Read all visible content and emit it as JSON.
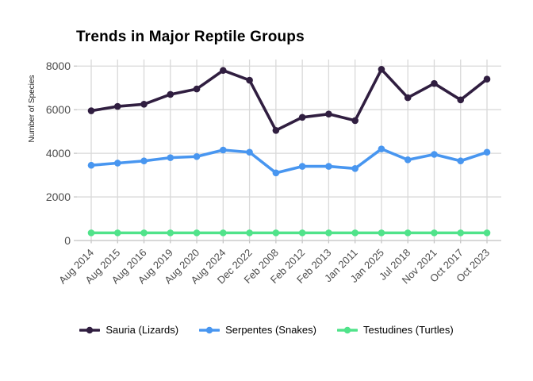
{
  "chart_data": {
    "type": "line",
    "title": "Trends in Major Reptile Groups",
    "xlabel": "",
    "ylabel": "Number of Species",
    "categories": [
      "Aug 2014",
      "Aug 2015",
      "Aug 2016",
      "Aug 2019",
      "Aug 2020",
      "Aug 2024",
      "Dec 2022",
      "Feb 2008",
      "Feb 2012",
      "Feb 2013",
      "Jan 2011",
      "Jan 2025",
      "Jul 2018",
      "Nov 2021",
      "Oct 2017",
      "Oct 2023"
    ],
    "series": [
      {
        "name": "Sauria (Lizards)",
        "color": "#301E40",
        "values": [
          5950,
          6150,
          6250,
          6700,
          6950,
          7800,
          7350,
          5050,
          5650,
          5800,
          5500,
          7850,
          6550,
          7200,
          6450,
          7400
        ]
      },
      {
        "name": "Serpentes (Snakes)",
        "color": "#4896F0",
        "values": [
          3450,
          3550,
          3650,
          3800,
          3850,
          4150,
          4050,
          3100,
          3400,
          3400,
          3300,
          4200,
          3700,
          3950,
          3650,
          4050
        ]
      },
      {
        "name": "Testudines (Turtles)",
        "color": "#50E38A",
        "values": [
          350,
          350,
          350,
          350,
          350,
          350,
          350,
          350,
          350,
          350,
          350,
          350,
          350,
          350,
          350,
          350
        ]
      }
    ],
    "yticks": [
      0,
      2000,
      4000,
      6000,
      8000
    ],
    "ylim": [
      0,
      8300
    ],
    "grid": true,
    "legend_position": "bottom"
  },
  "colors": {
    "background": "#FFFFFF",
    "grid": "#D9D9D9",
    "axis": "#C6C6C6",
    "tick_label": "#4D4D4D",
    "title": "#000000"
  }
}
